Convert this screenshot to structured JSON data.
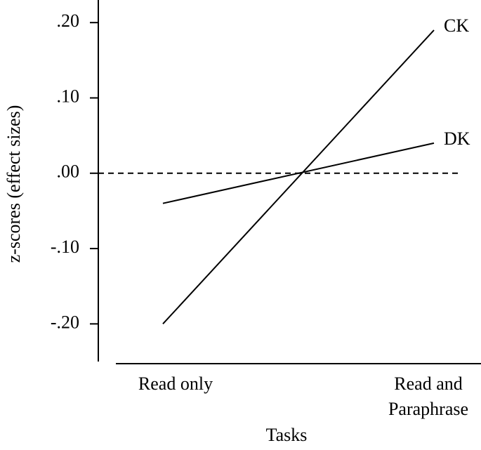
{
  "chart_data": {
    "type": "line",
    "x_label": "Tasks",
    "y_label": "z-scores (effect sizes)",
    "categories": [
      "Read only",
      "Read and Paraphrase"
    ],
    "series": [
      {
        "name": "CK",
        "color": "#000000",
        "values": [
          -0.2,
          0.19
        ]
      },
      {
        "name": "DK",
        "color": "#000000",
        "values": [
          -0.04,
          0.04
        ]
      }
    ],
    "ylim": [
      -0.25,
      0.23
    ],
    "yticks": [
      {
        "value": 0.2,
        "label": ".20"
      },
      {
        "value": 0.1,
        "label": ".10"
      },
      {
        "value": 0,
        "label": ".00"
      },
      {
        "value": -0.1,
        "label": "-.10"
      },
      {
        "value": -0.2,
        "label": "-.20"
      }
    ],
    "grid": false
  }
}
